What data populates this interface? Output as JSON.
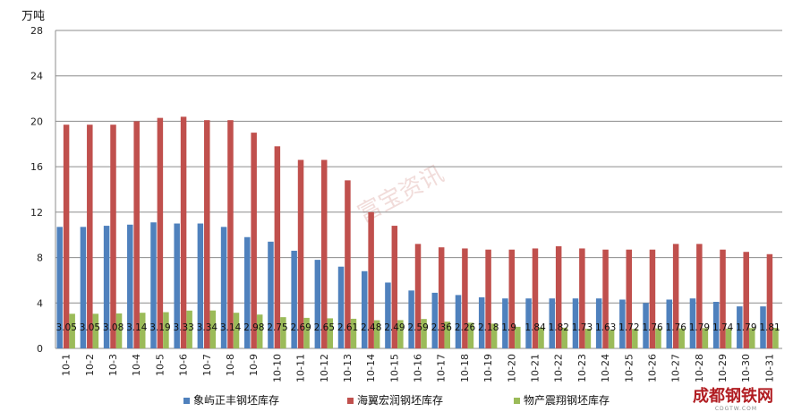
{
  "chart_data": {
    "type": "bar",
    "title": "",
    "unit_label": "万吨",
    "ylim": [
      0,
      28
    ],
    "yticks": [
      0,
      4,
      8,
      12,
      16,
      20,
      24,
      28
    ],
    "grid": true,
    "legend_position": "bottom",
    "categories": [
      "10-1",
      "10-2",
      "10-3",
      "10-4",
      "10-5",
      "10-6",
      "10-7",
      "10-8",
      "10-9",
      "10-10",
      "10-11",
      "10-12",
      "10-13",
      "10-14",
      "10-15",
      "10-16",
      "10-17",
      "10-18",
      "10-19",
      "10-20",
      "10-21",
      "10-22",
      "10-23",
      "10-24",
      "10-25",
      "10-26",
      "10-27",
      "10-28",
      "10-29",
      "10-30",
      "10-31"
    ],
    "series": [
      {
        "name": "象屿正丰钢坯库存",
        "color": "#4f81bd",
        "values": [
          10.7,
          10.7,
          10.8,
          10.9,
          11.1,
          11.0,
          11.0,
          10.7,
          9.8,
          9.4,
          8.6,
          7.8,
          7.2,
          6.8,
          5.8,
          5.1,
          4.9,
          4.7,
          4.5,
          4.4,
          4.4,
          4.4,
          4.4,
          4.4,
          4.3,
          4.0,
          4.3,
          4.4,
          4.1,
          3.7,
          3.7
        ]
      },
      {
        "name": "海翼宏润钢坯库存",
        "color": "#c0504d",
        "values": [
          19.7,
          19.7,
          19.7,
          20.0,
          20.3,
          20.4,
          20.1,
          20.1,
          19.0,
          17.8,
          16.6,
          16.6,
          14.8,
          12.0,
          10.8,
          9.2,
          8.9,
          8.8,
          8.7,
          8.7,
          8.8,
          9.0,
          8.8,
          8.7,
          8.7,
          8.7,
          9.2,
          9.2,
          8.7,
          8.5,
          8.3
        ]
      },
      {
        "name": "物产震翔钢坯库存",
        "color": "#9bbb59",
        "values": [
          3.05,
          3.05,
          3.08,
          3.14,
          3.19,
          3.33,
          3.34,
          3.14,
          2.98,
          2.75,
          2.69,
          2.65,
          2.61,
          2.48,
          2.49,
          2.59,
          2.36,
          2.26,
          2.18,
          1.9,
          1.84,
          1.82,
          1.73,
          1.63,
          1.72,
          1.76,
          1.76,
          1.79,
          1.74,
          1.79,
          1.81
        ],
        "data_labels": [
          "3.05",
          "3.05",
          "3.08",
          "3.14",
          "3.19",
          "3.33",
          "3.34",
          "3.14",
          "2.98",
          "2.75",
          "2.69",
          "2.65",
          "2.61",
          "2.48",
          "2.49",
          "2.59",
          "2.36",
          "2.26",
          "2.18",
          "1.9",
          "1.84",
          "1.82",
          "1.73",
          "1.63",
          "1.72",
          "1.76",
          "1.76",
          "1.79",
          "1.74",
          "1.79",
          "1.81"
        ]
      }
    ]
  },
  "watermark": {
    "text": "富宝资讯"
  },
  "logo": {
    "text": "成都钢铁网",
    "sub": "CDGTW.COM"
  }
}
